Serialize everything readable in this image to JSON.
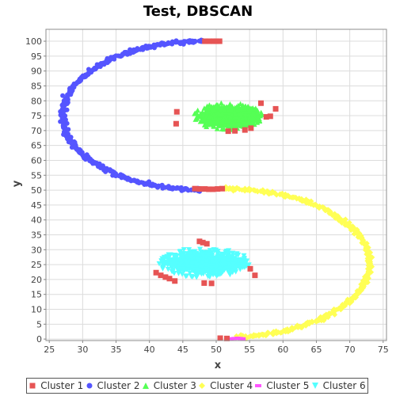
{
  "chart_data": {
    "type": "scatter",
    "title": "Test, DBSCAN",
    "xlabel": "x",
    "ylabel": "y",
    "xlim": [
      24.5,
      75.5
    ],
    "ylim": [
      -0.5,
      104
    ],
    "xticks": [
      "25",
      "30",
      "35",
      "40",
      "45",
      "50",
      "55",
      "60",
      "65",
      "70",
      "75"
    ],
    "yticks": [
      "0",
      "5",
      "10",
      "15",
      "20",
      "25",
      "30",
      "35",
      "40",
      "45",
      "50",
      "55",
      "60",
      "65",
      "70",
      "75",
      "80",
      "85",
      "90",
      "95",
      "100"
    ],
    "grid": true,
    "legend_position": "bottom",
    "series": [
      {
        "name": "Cluster 1",
        "marker": "square",
        "color": "#e65454",
        "points": [
          [
            48.3,
            100
          ],
          [
            49.0,
            100
          ],
          [
            49.6,
            100
          ],
          [
            50.0,
            100
          ],
          [
            50.5,
            100
          ],
          [
            44.1,
            76.3
          ],
          [
            44.0,
            72.3
          ],
          [
            51.8,
            69.8
          ],
          [
            52.8,
            69.9
          ],
          [
            54.3,
            70.2
          ],
          [
            55.2,
            70.8
          ],
          [
            56.7,
            79.2
          ],
          [
            57.5,
            74.6
          ],
          [
            58.1,
            74.8
          ],
          [
            58.9,
            77.3
          ],
          [
            46.8,
            50.5
          ],
          [
            47.5,
            50.4
          ],
          [
            48.3,
            50.4
          ],
          [
            48.9,
            50.3
          ],
          [
            49.5,
            50.3
          ],
          [
            50.2,
            50.4
          ],
          [
            50.9,
            50.5
          ],
          [
            47.5,
            32.8
          ],
          [
            48.0,
            32.4
          ],
          [
            48.6,
            32.0
          ],
          [
            41.0,
            22.3
          ],
          [
            41.7,
            21.4
          ],
          [
            42.4,
            20.8
          ],
          [
            43.0,
            20.3
          ],
          [
            43.8,
            19.5
          ],
          [
            48.2,
            18.8
          ],
          [
            49.3,
            18.7
          ],
          [
            55.1,
            23.6
          ],
          [
            55.8,
            21.4
          ],
          [
            50.6,
            0.3
          ],
          [
            51.6,
            0.2
          ]
        ]
      },
      {
        "name": "Cluster 2",
        "marker": "circle",
        "color": "#5555ff"
      },
      {
        "name": "Cluster 3",
        "marker": "triangle-up",
        "color": "#55ff55"
      },
      {
        "name": "Cluster 4",
        "marker": "diamond",
        "color": "#ffff55"
      },
      {
        "name": "Cluster 5",
        "marker": "bar",
        "color": "#ff55ff",
        "points": [
          [
            52.2,
            0.1
          ],
          [
            52.7,
            0.2
          ],
          [
            53.2,
            0.3
          ],
          [
            53.6,
            0.2
          ],
          [
            54.0,
            0.1
          ]
        ]
      },
      {
        "name": "Cluster 6",
        "marker": "triangle-down",
        "color": "#55ffff"
      }
    ]
  }
}
